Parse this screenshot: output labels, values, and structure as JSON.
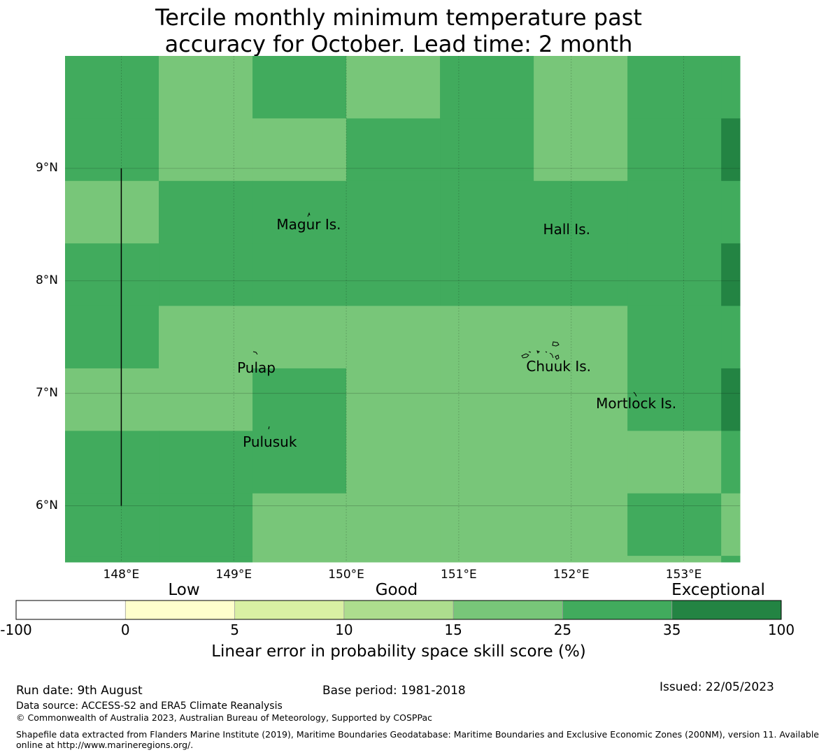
{
  "title": {
    "line1": "Tercile monthly minimum temperature past",
    "line2": "accuracy for October. Lead time: 2 month"
  },
  "map": {
    "lon_range": [
      147.5,
      153.5
    ],
    "lat_range": [
      5.5,
      10.0
    ],
    "cell_lon": 0.8333,
    "cell_lat": 0.5556,
    "lon_ticks": [
      {
        "value": 148,
        "label": "148°E"
      },
      {
        "value": 149,
        "label": "149°E"
      },
      {
        "value": 150,
        "label": "150°E"
      },
      {
        "value": 151,
        "label": "151°E"
      },
      {
        "value": 152,
        "label": "152°E"
      },
      {
        "value": 153,
        "label": "153°E"
      }
    ],
    "lat_ticks": [
      {
        "value": 9,
        "label": "9°N"
      },
      {
        "value": 8,
        "label": "8°N"
      },
      {
        "value": 7,
        "label": "7°N"
      },
      {
        "value": 6,
        "label": "6°N"
      }
    ],
    "grid_classes_north_to_south": [
      [
        5,
        4,
        5,
        4,
        5,
        4,
        5,
        5
      ],
      [
        5,
        4,
        4,
        5,
        5,
        4,
        5,
        6
      ],
      [
        4,
        5,
        5,
        5,
        5,
        5,
        5,
        5
      ],
      [
        5,
        5,
        5,
        5,
        5,
        5,
        5,
        6
      ],
      [
        5,
        4,
        4,
        4,
        4,
        4,
        5,
        5
      ],
      [
        4,
        4,
        5,
        4,
        4,
        4,
        5,
        6
      ],
      [
        5,
        5,
        5,
        4,
        4,
        4,
        4,
        5
      ],
      [
        5,
        5,
        4,
        4,
        4,
        4,
        5,
        4
      ],
      [
        5,
        5,
        4,
        4,
        4,
        4,
        4,
        5
      ]
    ],
    "places": [
      {
        "name": "Magur Is.",
        "lon": 149.38,
        "lat": 8.5
      },
      {
        "name": "Hall Is.",
        "lon": 151.75,
        "lat": 8.46
      },
      {
        "name": "Pulap",
        "lon": 149.03,
        "lat": 7.23
      },
      {
        "name": "Chuuk Is.",
        "lon": 151.6,
        "lat": 7.24
      },
      {
        "name": "Mortlock Is.",
        "lon": 152.22,
        "lat": 6.91
      },
      {
        "name": "Pulusuk",
        "lon": 149.08,
        "lat": 6.57
      }
    ],
    "boundary_line": {
      "lon": 148.0,
      "lat_from": 6.0,
      "lat_to": 9.0
    }
  },
  "legend": {
    "category_labels": [
      "Low",
      "Good",
      "Exceptional"
    ],
    "bounds": [
      "-100",
      "0",
      "5",
      "10",
      "15",
      "25",
      "35",
      "100"
    ],
    "colors": [
      "#ffffff",
      "#ffffcc",
      "#d9f0a3",
      "#addd8e",
      "#78c679",
      "#41ab5d",
      "#238443"
    ],
    "title": "Linear error in probability space skill score (%)"
  },
  "footer": {
    "run_date": "Run date: 9th August",
    "base_period": "Base period: 1981-2018",
    "issued": "Issued: 22/05/2023",
    "data_source": "Data source: ACCESS-S2 and ERA5 Climate Reanalysis",
    "copyright": "© Commonwealth of Australia 2023, Australian Bureau of Meteorology, Supported by COSPPac",
    "shapefile_line1": "Shapefile data extracted from Flanders Marine Institute (2019), Maritime Boundaries Geodatabase: Maritime Boundaries and Exclusive Economic Zones (200NM), version 11. Available",
    "shapefile_line2": "online at http://www.marineregions.org/."
  }
}
